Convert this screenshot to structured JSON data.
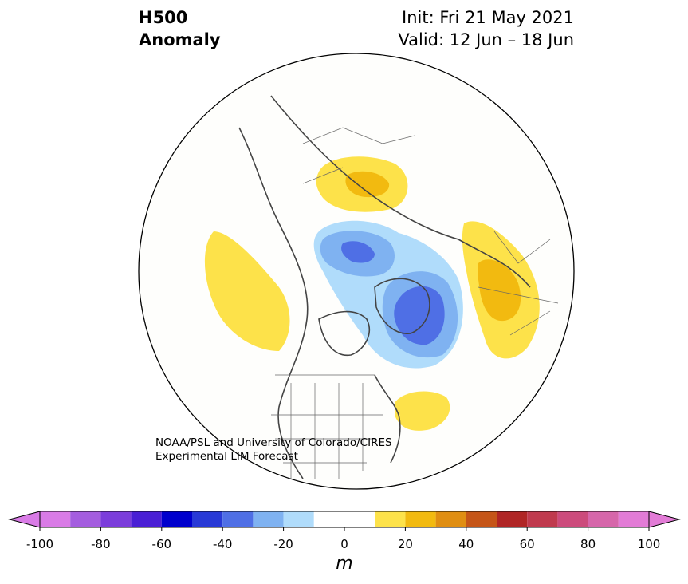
{
  "header": {
    "field_line1": "H500",
    "field_line2": "Anomaly",
    "init_text": "Init: Fri 21 May 2021",
    "valid_text": "Valid: 12 Jun – 18 Jun"
  },
  "credit": {
    "line1": "NOAA/PSL and University of Colorado/CIRES",
    "line2": "Experimental LIM Forecast"
  },
  "colorbar": {
    "unit": "m",
    "ticks": [
      "-100",
      "-80",
      "-60",
      "-40",
      "-20",
      "0",
      "20",
      "40",
      "60",
      "80",
      "100"
    ],
    "levels": [
      -100,
      -90,
      -80,
      -70,
      -60,
      -50,
      -40,
      -30,
      -20,
      -10,
      10,
      20,
      30,
      40,
      50,
      60,
      70,
      80,
      90,
      100
    ],
    "colors": [
      "#d97be6",
      "#a45ddf",
      "#7b3ddb",
      "#4a1fd5",
      "#0000cd",
      "#2839d6",
      "#4f6fe5",
      "#7fb2f1",
      "#b0dcfb",
      "#ffffff",
      "#fde24a",
      "#f2ba10",
      "#e08e12",
      "#c55518",
      "#b02525",
      "#c03a4e",
      "#cc4b7c",
      "#d666aa",
      "#e27bd6"
    ],
    "extend_min_color": "#d97be6",
    "extend_max_color": "#e27bd6"
  }
}
